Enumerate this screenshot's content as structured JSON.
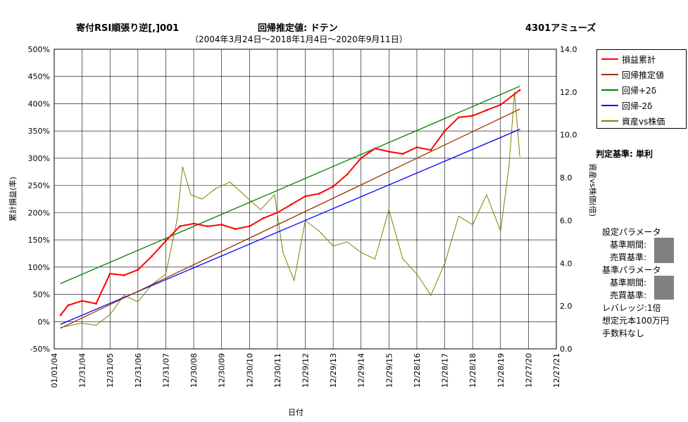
{
  "header": {
    "strategy": "寄付RSI順張り逆[,]001",
    "mode": "回帰推定値: ドテン",
    "ticker": "4301アミューズ",
    "period": "（2004年3月24日～2018年1月4日～2020年9月11日）"
  },
  "chart_data": {
    "type": "line",
    "xlabel": "日付",
    "ylabel_left": "累計損益(率)",
    "ylabel_right": "資産vs株価(倍)",
    "x_ticks": [
      "01/01/04",
      "12/31/04",
      "12/31/05",
      "12/31/06",
      "12/31/07",
      "12/30/08",
      "12/30/09",
      "12/30/10",
      "12/30/11",
      "12/29/12",
      "12/29/13",
      "12/29/14",
      "12/29/15",
      "12/28/16",
      "12/28/17",
      "12/28/18",
      "12/28/19",
      "12/27/20",
      "12/27/21"
    ],
    "y_left_ticks": [
      "500%",
      "450%",
      "400%",
      "350%",
      "300%",
      "250%",
      "200%",
      "150%",
      "100%",
      "50%",
      "0%",
      "-50%"
    ],
    "y_right_ticks": [
      "14.0",
      "12.0",
      "10.0",
      "8.0",
      "6.0",
      "4.0",
      "2.0",
      "0.0"
    ],
    "y_left_range": [
      -50,
      500
    ],
    "y_right_range": [
      0,
      14
    ],
    "grid": true,
    "legend_position": "top-right",
    "series": [
      {
        "name": "損益累計",
        "color": "#ff0000",
        "axis": "left",
        "x": [
          2004.23,
          2004.5,
          2005.0,
          2005.5,
          2006.0,
          2006.5,
          2007.0,
          2007.5,
          2008.0,
          2008.5,
          2009.0,
          2009.5,
          2010.0,
          2010.5,
          2011.0,
          2011.5,
          2012.0,
          2012.5,
          2013.0,
          2013.5,
          2014.0,
          2014.5,
          2015.0,
          2015.5,
          2016.0,
          2016.5,
          2017.0,
          2017.5,
          2018.0,
          2018.5,
          2019.0,
          2019.5,
          2020.0,
          2020.69
        ],
        "y": [
          12,
          30,
          38,
          33,
          88,
          85,
          95,
          120,
          148,
          175,
          180,
          175,
          178,
          170,
          175,
          190,
          200,
          215,
          230,
          235,
          248,
          270,
          300,
          318,
          312,
          308,
          320,
          315,
          350,
          375,
          378,
          388,
          398,
          425
        ]
      },
      {
        "name": "回帰推定値",
        "color": "#993300",
        "axis": "left",
        "x": [
          2004.23,
          2020.69
        ],
        "y": [
          -12,
          390
        ]
      },
      {
        "name": "回帰+2δ",
        "color": "#008000",
        "axis": "left",
        "x": [
          2004.23,
          2020.69
        ],
        "y": [
          70,
          432
        ]
      },
      {
        "name": "回帰-2δ",
        "color": "#0000ff",
        "axis": "left",
        "x": [
          2004.23,
          2020.69
        ],
        "y": [
          -5,
          353
        ]
      },
      {
        "name": "資産vs株価",
        "color": "#808000",
        "axis": "right",
        "x": [
          2004.23,
          2004.6,
          2005.0,
          2005.5,
          2006.0,
          2006.5,
          2007.0,
          2007.5,
          2008.0,
          2008.4,
          2008.6,
          2008.9,
          2009.3,
          2009.8,
          2010.3,
          2010.8,
          2011.4,
          2011.9,
          2012.2,
          2012.6,
          2013.0,
          2013.5,
          2014.0,
          2014.5,
          2015.0,
          2015.5,
          2016.0,
          2016.5,
          2017.0,
          2017.5,
          2018.0,
          2018.5,
          2019.0,
          2019.5,
          2020.0,
          2020.3,
          2020.5,
          2020.69
        ],
        "y": [
          1.0,
          1.1,
          1.2,
          1.1,
          1.6,
          2.5,
          2.2,
          3.0,
          3.5,
          6.0,
          8.5,
          7.2,
          7.0,
          7.5,
          7.8,
          7.2,
          6.5,
          7.2,
          4.5,
          3.2,
          6.0,
          5.5,
          4.8,
          5.0,
          4.5,
          4.2,
          6.5,
          4.2,
          3.5,
          2.5,
          4.0,
          6.2,
          5.8,
          7.2,
          5.5,
          8.5,
          12.0,
          9.0
        ]
      }
    ]
  },
  "side": {
    "judgement": "判定基準: 単利",
    "params_title": "設定パラメータ",
    "base_period": "基準期間:",
    "trade_basis": "売買基準:",
    "base_params_title": "基準パラメータ",
    "base_period2": "基準期間:",
    "trade_basis2": "売買基準:",
    "leverage": "レバレッジ:1倍",
    "capital": "想定元本100万円",
    "fee": "手数料なし"
  }
}
